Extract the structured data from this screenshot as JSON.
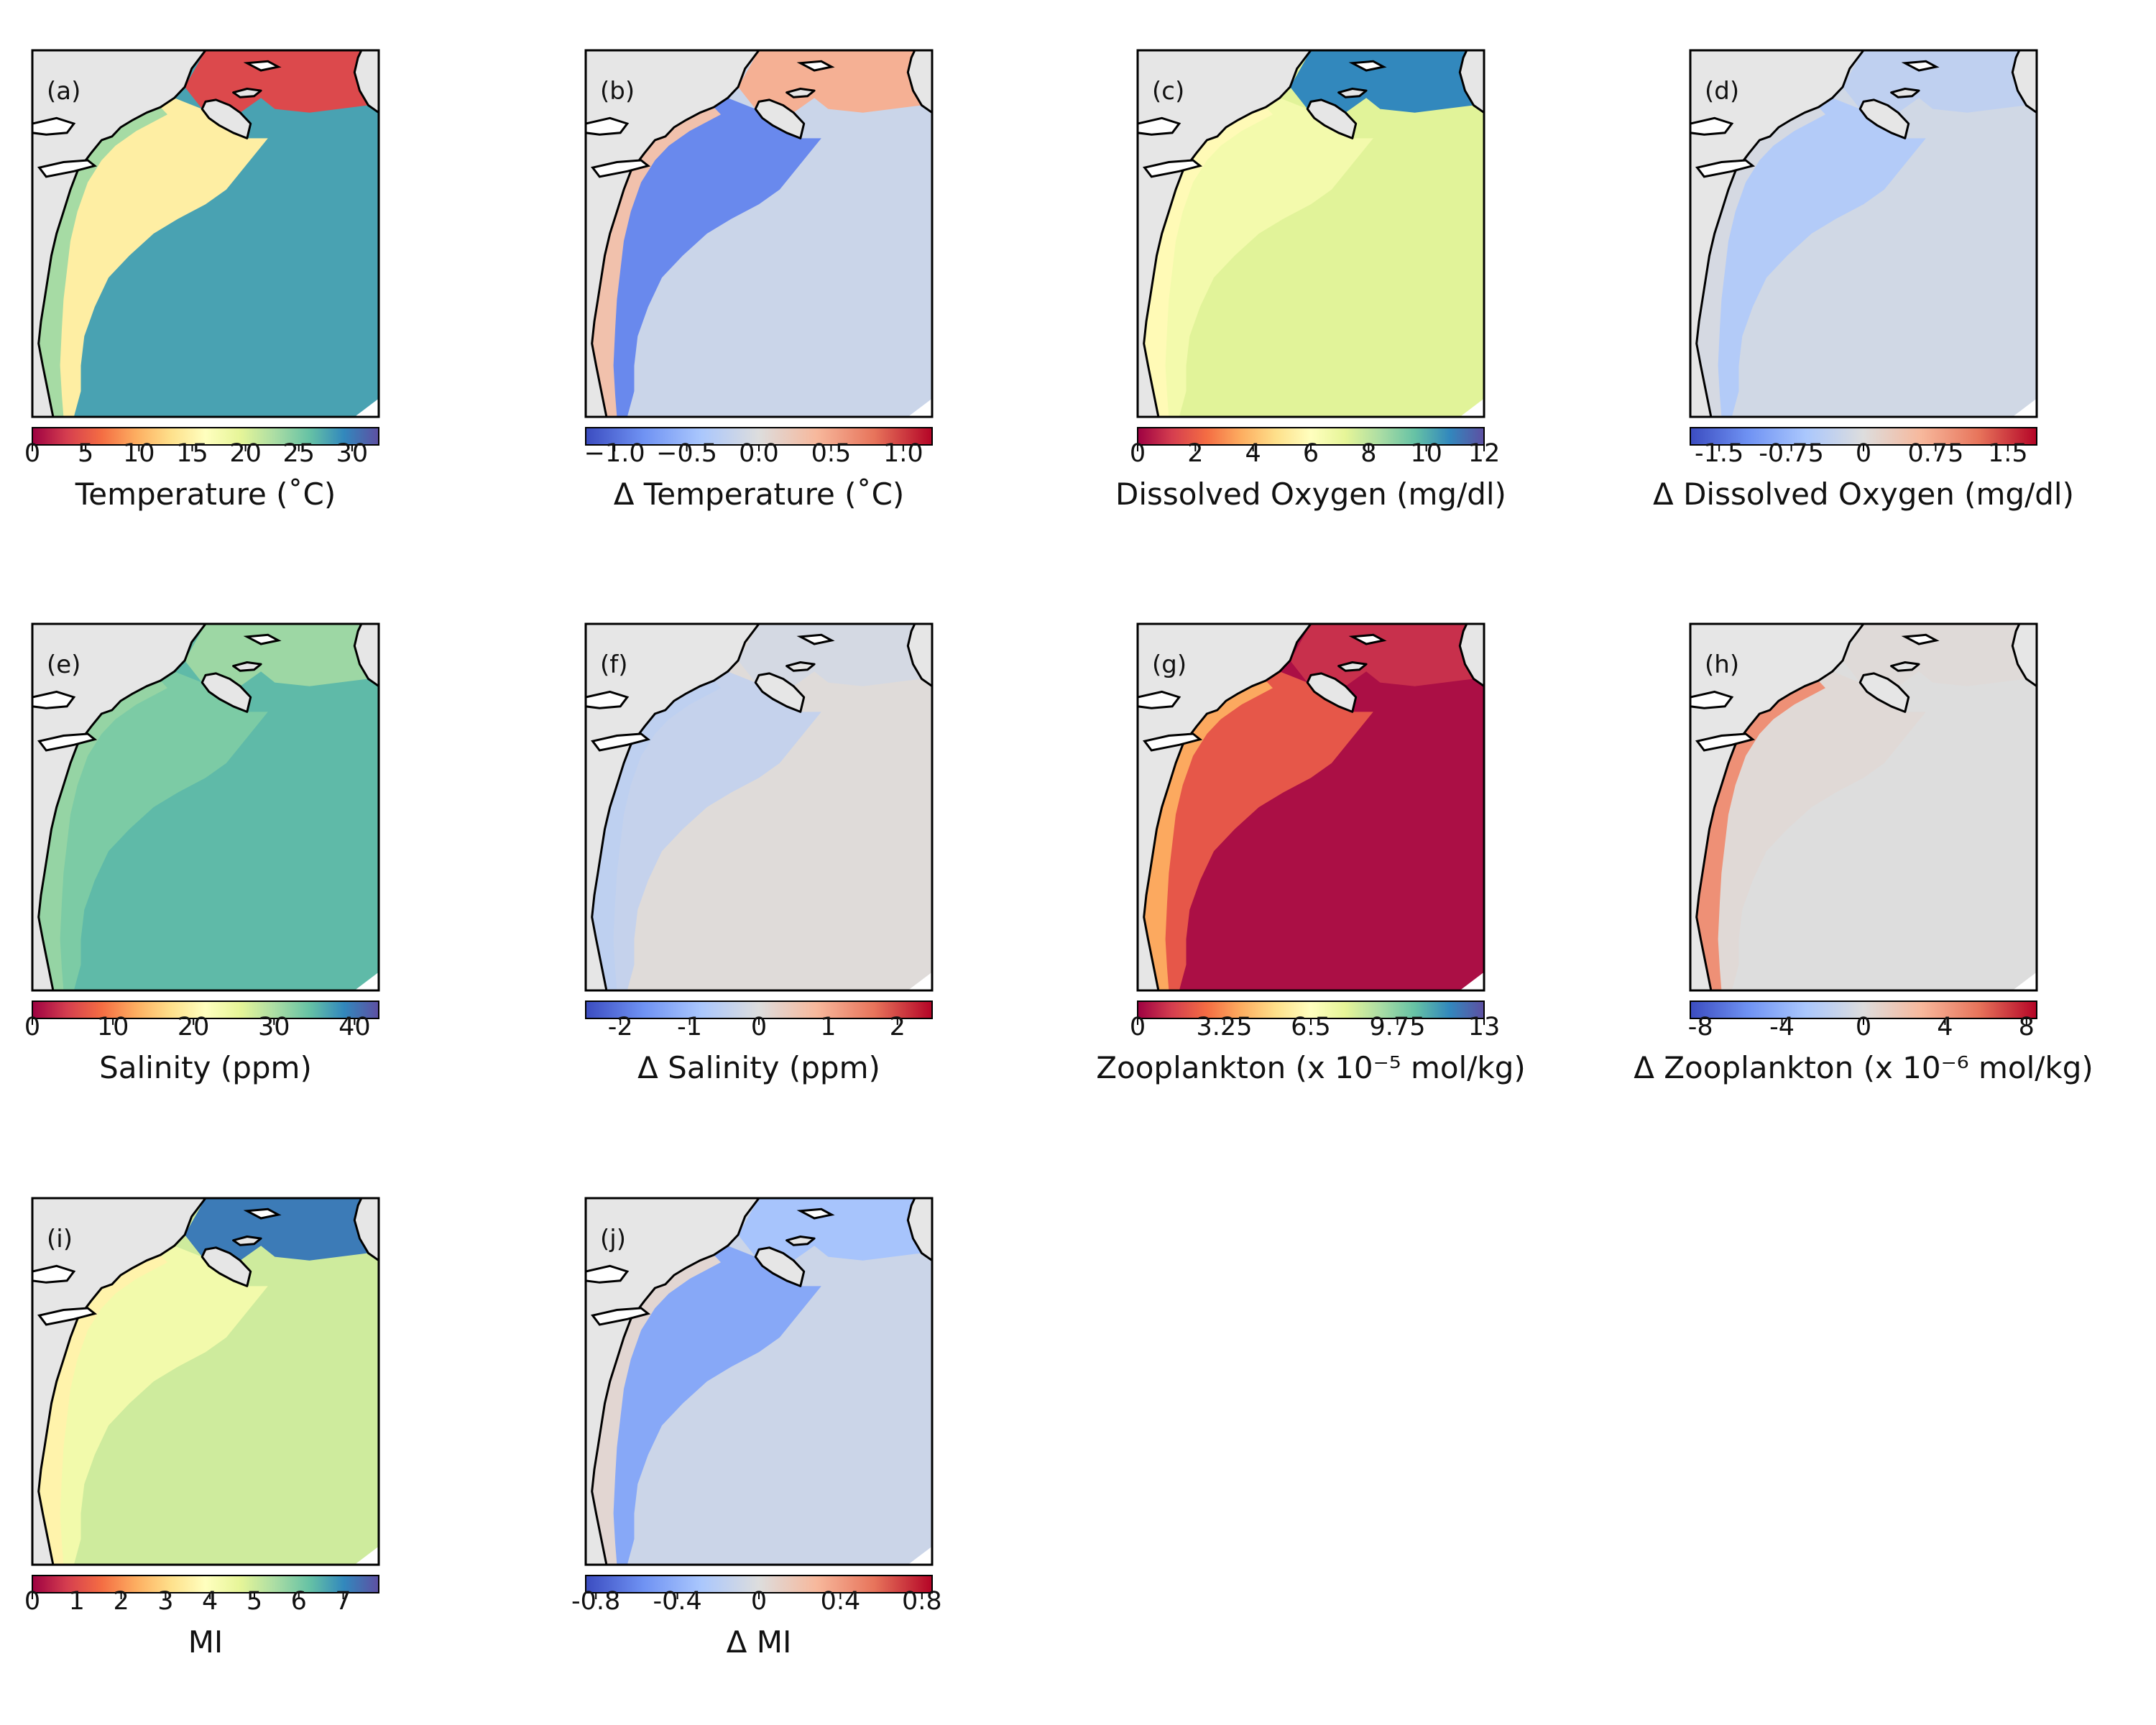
{
  "colormaps": {
    "spectral": [
      "#9e0142",
      "#d53e4f",
      "#f46d43",
      "#fdae61",
      "#fee08b",
      "#ffffbf",
      "#e6f598",
      "#abdda4",
      "#66c2a5",
      "#3288bd",
      "#5e4fa2"
    ],
    "coolwarm": [
      "#3b4cc0",
      "#6f92f3",
      "#aac7fd",
      "#dddddd",
      "#f7b89c",
      "#e7745b",
      "#b40426"
    ]
  },
  "map_colors": {
    "land": "#e6e6e6",
    "coast": "#000000"
  },
  "chart_data": [
    {
      "id": "a",
      "panel_label": "(a)",
      "type": "heatmap",
      "colorbar": {
        "title": "Temperature (˚C)",
        "vmin": 0,
        "vmax": 32.5,
        "cmap": "spectral",
        "ticks": [
          0,
          5,
          10,
          15,
          20,
          25,
          30
        ],
        "tick_labels": [
          "0",
          "5",
          "10",
          "15",
          "20",
          "25",
          "30"
        ]
      },
      "ocean_value": 27.8,
      "shelf_value": 14.5,
      "nearshore_value": 23,
      "north_value": 4
    },
    {
      "id": "b",
      "panel_label": "(b)",
      "type": "heatmap",
      "colorbar": {
        "title": "Δ Temperature (˚C)",
        "vmin": -1.2,
        "vmax": 1.2,
        "cmap": "coolwarm",
        "ticks": [
          -1.0,
          -0.5,
          0.0,
          0.5,
          1.0
        ],
        "tick_labels": [
          "−1.0",
          "−0.5",
          "0.0",
          "0.5",
          "1.0"
        ]
      },
      "ocean_value": -0.15,
      "shelf_value": -0.85,
      "nearshore_value": 0.3,
      "north_value": 0.45
    },
    {
      "id": "c",
      "panel_label": "(c)",
      "type": "heatmap",
      "colorbar": {
        "title": "Dissolved Oxygen (mg/dl)",
        "vmin": 0,
        "vmax": 12,
        "cmap": "spectral",
        "ticks": [
          0,
          2,
          4,
          6,
          8,
          10,
          12
        ],
        "tick_labels": [
          "0",
          "2",
          "4",
          "6",
          "8",
          "10",
          "12"
        ]
      },
      "ocean_value": 7.3,
      "shelf_value": 6.6,
      "nearshore_value": 5.8,
      "north_value": 10.8
    },
    {
      "id": "d",
      "panel_label": "(d)",
      "type": "heatmap",
      "colorbar": {
        "title": "Δ Dissolved Oxygen (mg/dl)",
        "vmin": -1.8,
        "vmax": 1.8,
        "cmap": "coolwarm",
        "ticks": [
          -1.5,
          -0.75,
          0,
          0.75,
          1.5
        ],
        "tick_labels": [
          "-1.5",
          "-0.75",
          "0",
          "0.75",
          "1.5"
        ]
      },
      "ocean_value": -0.15,
      "shelf_value": -0.5,
      "nearshore_value": -0.1,
      "north_value": -0.35
    },
    {
      "id": "e",
      "panel_label": "(e)",
      "type": "heatmap",
      "colorbar": {
        "title": "Salinity (ppm)",
        "vmin": 0,
        "vmax": 43,
        "cmap": "spectral",
        "ticks": [
          0,
          10,
          20,
          30,
          40
        ],
        "tick_labels": [
          "0",
          "10",
          "20",
          "30",
          "40"
        ]
      },
      "ocean_value": 35,
      "shelf_value": 33,
      "nearshore_value": 31.5,
      "north_value": 31
    },
    {
      "id": "f",
      "panel_label": "(f)",
      "type": "heatmap",
      "colorbar": {
        "title": "Δ Salinity (ppm)",
        "vmin": -2.5,
        "vmax": 2.5,
        "cmap": "coolwarm",
        "ticks": [
          -2,
          -1,
          0,
          1,
          2
        ],
        "tick_labels": [
          "-2",
          "-1",
          "0",
          "1",
          "2"
        ]
      },
      "ocean_value": 0.05,
      "shelf_value": -0.4,
      "nearshore_value": -0.5,
      "north_value": -0.15
    },
    {
      "id": "g",
      "panel_label": "(g)",
      "type": "heatmap",
      "colorbar": {
        "title": "Zooplankton (x 10⁻⁵ mol/kg)",
        "vmin": 0,
        "vmax": 13,
        "cmap": "spectral",
        "ticks": [
          0,
          3.25,
          6.5,
          9.75,
          13
        ],
        "tick_labels": [
          "0",
          "3.25",
          "6.5",
          "9.75",
          "13"
        ]
      },
      "ocean_value": 0.3,
      "shelf_value": 2.0,
      "nearshore_value": 3.8,
      "north_value": 1.0
    },
    {
      "id": "h",
      "panel_label": "(h)",
      "type": "heatmap",
      "colorbar": {
        "title": "Δ Zooplankton (x 10⁻⁶ mol/kg)",
        "vmin": -8.5,
        "vmax": 8.5,
        "cmap": "coolwarm",
        "ticks": [
          -8,
          -4,
          0,
          4,
          8
        ],
        "tick_labels": [
          "-8",
          "-4",
          "0",
          "4",
          "8"
        ]
      },
      "ocean_value": 0,
      "shelf_value": 0.3,
      "nearshore_value": 4.5,
      "north_value": 0.2
    },
    {
      "id": "i",
      "panel_label": "(i)",
      "type": "heatmap",
      "colorbar": {
        "title": "MI",
        "vmin": 0,
        "vmax": 7.8,
        "cmap": "spectral",
        "ticks": [
          0,
          1,
          2,
          3,
          4,
          5,
          6,
          7
        ],
        "tick_labels": [
          "0",
          "1",
          "2",
          "3",
          "4",
          "5",
          "6",
          "7"
        ]
      },
      "ocean_value": 5.0,
      "shelf_value": 4.3,
      "nearshore_value": 3.6,
      "north_value": 7.2
    },
    {
      "id": "j",
      "panel_label": "(j)",
      "type": "heatmap",
      "colorbar": {
        "title": "Δ MI",
        "vmin": -0.85,
        "vmax": 0.85,
        "cmap": "coolwarm",
        "ticks": [
          -0.8,
          -0.4,
          0,
          0.4,
          0.8
        ],
        "tick_labels": [
          "-0.8",
          "-0.4",
          "0",
          "0.4",
          "0.8"
        ]
      },
      "ocean_value": -0.1,
      "shelf_value": -0.45,
      "nearshore_value": 0.05,
      "north_value": -0.3
    }
  ]
}
